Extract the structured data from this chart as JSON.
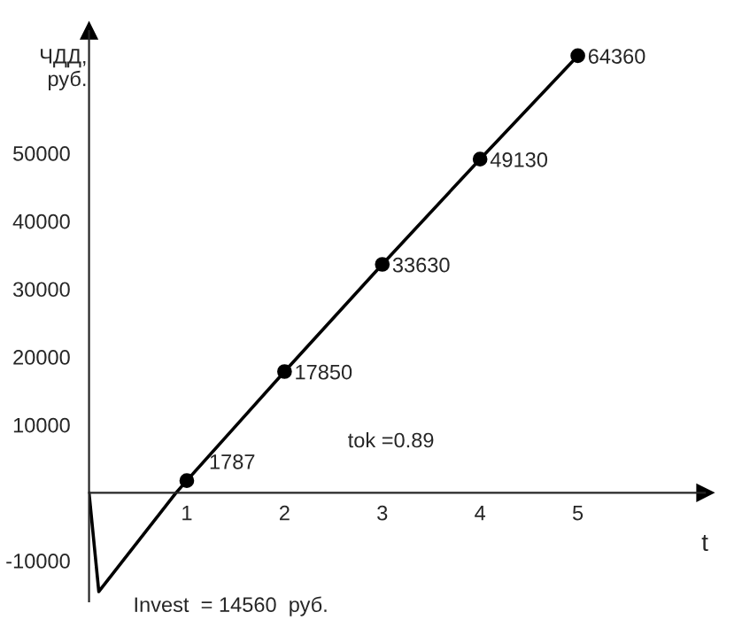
{
  "chart_data": {
    "type": "line",
    "xlabel": "t",
    "ylabel": "ЧДД,\nруб.",
    "x": [
      0,
      0.1,
      0.89,
      1,
      2,
      3,
      4,
      5
    ],
    "series": [
      {
        "color": "#000000",
        "values": [
          0,
          -14560,
          0,
          1787,
          17850,
          33630,
          49130,
          64360
        ],
        "value_labels": [
          null,
          null,
          null,
          "1787",
          "17850",
          "33630",
          "49130",
          "64360"
        ]
      }
    ],
    "marker": "circle",
    "xlim": [
      0,
      6.3
    ],
    "ylim": [
      -16000,
      68000
    ],
    "xticks": [
      1,
      2,
      3,
      4,
      5
    ],
    "yticks": [
      -10000,
      10000,
      20000,
      30000,
      40000,
      50000
    ],
    "annotations": [
      "tok =0.89",
      {
        "text": "Invest  = 14560  руб.",
        "x": 0.1,
        "y": -14560
      }
    ]
  }
}
